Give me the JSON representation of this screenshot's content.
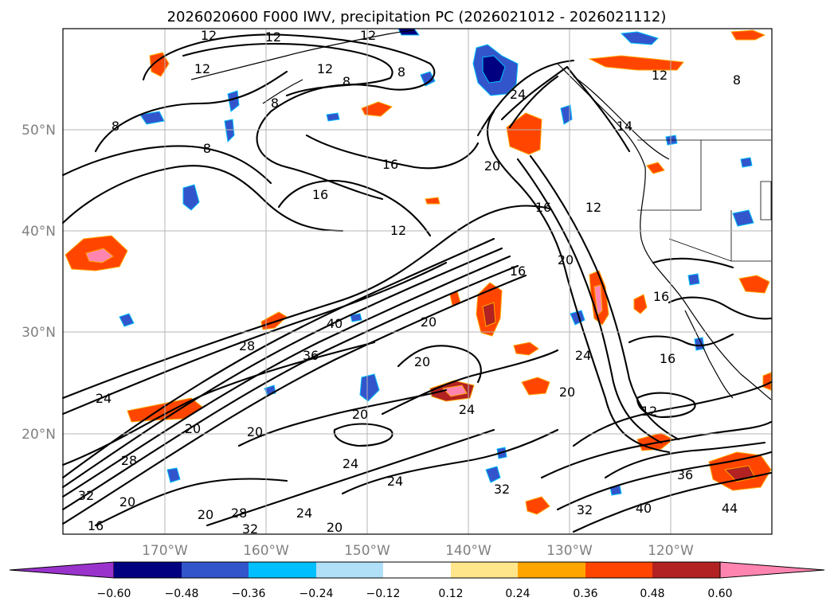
{
  "title": "2026020600 F000 IWV, precipitation PC (2026021012 - 2026021112)",
  "map": {
    "lat_labels": [
      "50°N",
      "40°N",
      "30°N",
      "20°N"
    ],
    "lon_labels": [
      "170°W",
      "160°W",
      "150°W",
      "140°W",
      "130°W",
      "120°W"
    ],
    "contour_labels": [
      "12",
      "12",
      "12",
      "12",
      "8",
      "8",
      "8",
      "8",
      "8",
      "12",
      "12",
      "8",
      "24",
      "16",
      "16",
      "20",
      "16",
      "12",
      "14",
      "12",
      "16",
      "20",
      "16",
      "16",
      "40",
      "20",
      "20",
      "36",
      "24",
      "24",
      "20",
      "24",
      "20",
      "20",
      "12",
      "28",
      "36",
      "20",
      "28",
      "24",
      "24",
      "24",
      "28",
      "32",
      "32",
      "32",
      "20",
      "20",
      "40",
      "44",
      "16",
      "20",
      "32"
    ]
  },
  "colorbar": {
    "ticks": [
      "−0.60",
      "−0.48",
      "−0.36",
      "−0.24",
      "−0.12",
      "0.12",
      "0.24",
      "0.36",
      "0.48",
      "0.60"
    ],
    "colors": [
      "#9933cc",
      "#000080",
      "#3355cc",
      "#00bfff",
      "#b0e0f8",
      "#ffffff",
      "#ffe68a",
      "#ffa500",
      "#ff4500",
      "#b22222",
      "#ff85b0"
    ]
  }
}
